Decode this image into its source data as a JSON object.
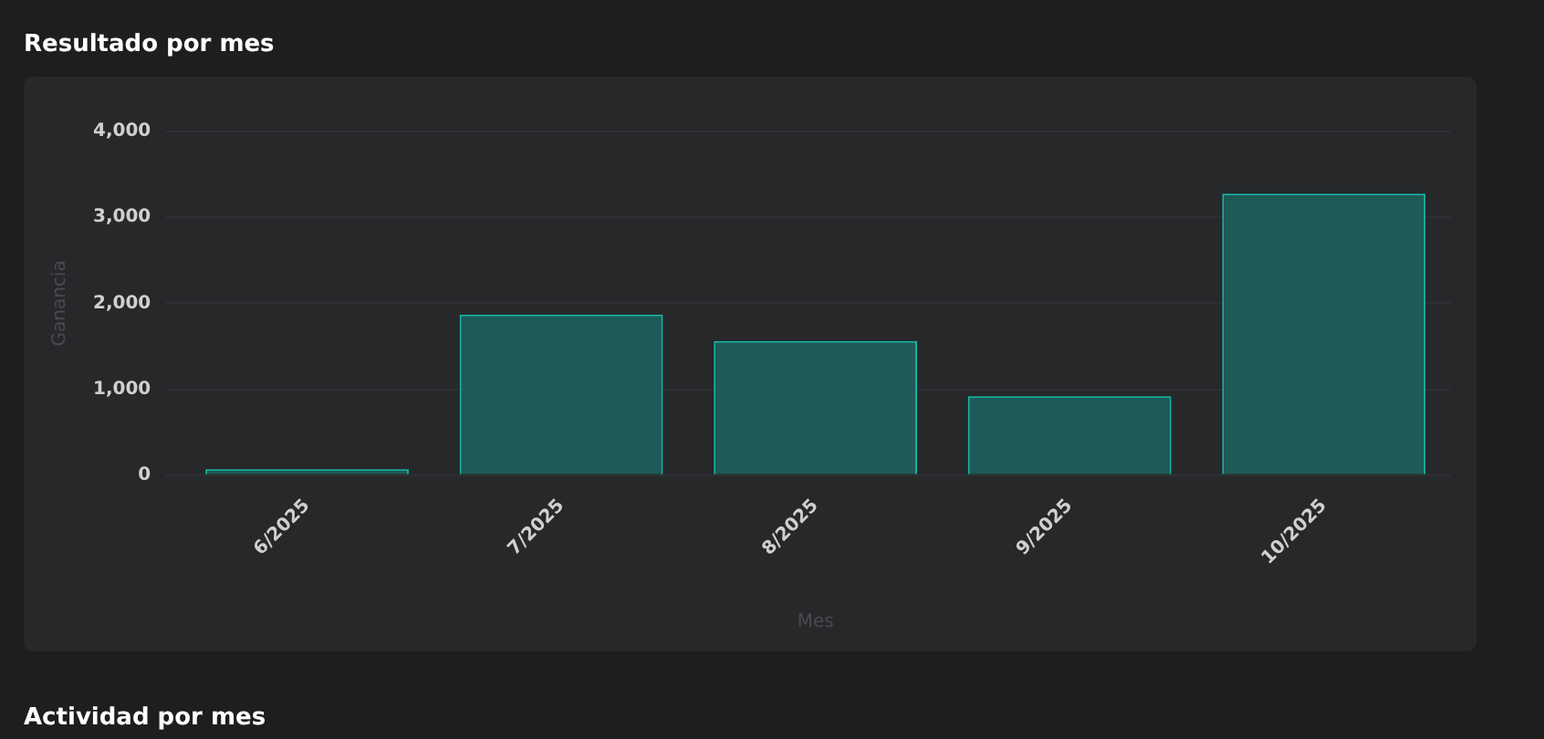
{
  "chart_data": {
    "type": "bar",
    "title": "Resultado por mes",
    "xlabel": "Mes",
    "ylabel": "Ganancia",
    "categories": [
      "6/2025",
      "7/2025",
      "8/2025",
      "9/2025",
      "10/2025"
    ],
    "values": [
      70,
      1870,
      1560,
      920,
      3275
    ],
    "color": "#1e5a57",
    "ylim": [
      0,
      4000
    ],
    "yticks": [
      {
        "value": 0,
        "label": "0"
      },
      {
        "value": 1000,
        "label": "1,000"
      },
      {
        "value": 2000,
        "label": "2,000"
      },
      {
        "value": 3000,
        "label": "3,000"
      },
      {
        "value": 4000,
        "label": "4,000"
      }
    ],
    "grid": "y",
    "legend": false,
    "annotations": [
      "Actividad por mes"
    ]
  }
}
